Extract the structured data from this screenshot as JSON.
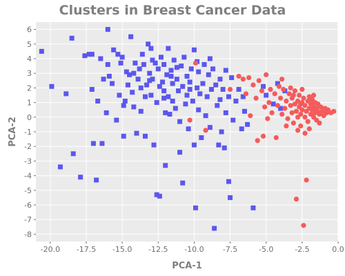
{
  "chart_data": {
    "type": "scatter",
    "title": "Clusters in Breast Cancer Data",
    "xlabel": "PCA-1",
    "ylabel": "PCA-2",
    "xlim": [
      -21,
      0
    ],
    "ylim": [
      -8.5,
      6.5
    ],
    "xticks": [
      -20.0,
      -17.5,
      -15.0,
      -12.5,
      -10.0,
      -7.5,
      -5.0,
      -2.5,
      0.0
    ],
    "xtick_labels": [
      "-20.0",
      "-17.5",
      "-15.0",
      "-12.5",
      "-10.0",
      "-7.5",
      "-5.0",
      "-2.5",
      "0.0"
    ],
    "yticks": [
      6,
      5,
      4,
      3,
      2,
      1,
      0,
      -1,
      -2,
      -3,
      -4,
      -5,
      -6,
      -7,
      -8
    ],
    "ytick_labels": [
      "6",
      "5",
      "4",
      "3",
      "2",
      "1",
      "0",
      "-1",
      "-2",
      "-3",
      "-4",
      "-5",
      "-6",
      "-7",
      "-8"
    ],
    "grid": true,
    "colors": {
      "background": "#ebebeb",
      "grid": "#ffffff",
      "text": "#7f7f7f",
      "series_a": "#5b57ee",
      "series_b": "#f55a5a"
    },
    "series": [
      {
        "marker": "square",
        "color": "#5b57ee",
        "points": [
          [
            -20.6,
            4.5
          ],
          [
            -19.9,
            2.1
          ],
          [
            -19.3,
            -3.4
          ],
          [
            -18.9,
            1.6
          ],
          [
            -18.5,
            5.4
          ],
          [
            -18.4,
            -2.5
          ],
          [
            -17.9,
            -4.1
          ],
          [
            -17.6,
            4.2
          ],
          [
            -17.3,
            4.3
          ],
          [
            -17.1,
            4.3
          ],
          [
            -17.1,
            1.9
          ],
          [
            -17.0,
            -1.8
          ],
          [
            -16.8,
            -4.3
          ],
          [
            -16.7,
            1.1
          ],
          [
            -16.4,
            -1.8
          ],
          [
            -16.3,
            2.6
          ],
          [
            -16.1,
            0.3
          ],
          [
            -16.0,
            6.0
          ],
          [
            -16.0,
            3.6
          ],
          [
            -15.9,
            2.8
          ],
          [
            -15.6,
            4.6
          ],
          [
            -15.4,
            -0.2
          ],
          [
            -15.3,
            4.3
          ],
          [
            -15.2,
            1.5
          ],
          [
            -15.1,
            3.7
          ],
          [
            -15.0,
            4.1
          ],
          [
            -14.9,
            0.8
          ],
          [
            -14.9,
            -1.3
          ],
          [
            -14.8,
            1.1
          ],
          [
            -14.7,
            3.1
          ],
          [
            -14.6,
            2.2
          ],
          [
            -14.5,
            2.9
          ],
          [
            -14.4,
            5.5
          ],
          [
            -14.3,
            1.7
          ],
          [
            -14.2,
            0.7
          ],
          [
            -14.1,
            3.7
          ],
          [
            -14.0,
            -1.1
          ],
          [
            -13.9,
            2.6
          ],
          [
            -13.8,
            3.3
          ],
          [
            -13.7,
            2.0
          ],
          [
            -13.6,
            4.3
          ],
          [
            -13.5,
            3.6
          ],
          [
            -13.4,
            -1.3
          ],
          [
            -13.4,
            1.4
          ],
          [
            -13.3,
            2.2
          ],
          [
            -13.2,
            5.0
          ],
          [
            -13.1,
            3.0
          ],
          [
            -13.0,
            1.5
          ],
          [
            -13.0,
            4.7
          ],
          [
            -12.9,
            2.6
          ],
          [
            -12.8,
            -1.9
          ],
          [
            -12.7,
            3.7
          ],
          [
            -12.6,
            1.0
          ],
          [
            -12.6,
            -5.3
          ],
          [
            -12.5,
            3.3
          ],
          [
            -12.4,
            2.1
          ],
          [
            -12.4,
            -5.4
          ],
          [
            -12.3,
            4.1
          ],
          [
            -12.2,
            2.4
          ],
          [
            -12.1,
            1.8
          ],
          [
            -12.1,
            3.6
          ],
          [
            -12.0,
            0.3
          ],
          [
            -12.0,
            -3.3
          ],
          [
            -11.9,
            2.9
          ],
          [
            -11.8,
            1.4
          ],
          [
            -11.8,
            4.7
          ],
          [
            -11.7,
            0.2
          ],
          [
            -11.6,
            3.2
          ],
          [
            -11.5,
            2.3
          ],
          [
            -11.5,
            1.1
          ],
          [
            -11.4,
            3.9
          ],
          [
            -11.3,
            0.6
          ],
          [
            -11.2,
            2.6
          ],
          [
            -11.1,
            1.8
          ],
          [
            -11.0,
            -0.3
          ],
          [
            -11.0,
            -2.4
          ],
          [
            -10.9,
            3.5
          ],
          [
            -10.8,
            2.1
          ],
          [
            -10.8,
            -4.5
          ],
          [
            -10.7,
            4.1
          ],
          [
            -10.6,
            0.9
          ],
          [
            -10.5,
            2.8
          ],
          [
            -10.5,
            1.5
          ],
          [
            -10.4,
            -0.8
          ],
          [
            -10.3,
            2.4
          ],
          [
            -10.2,
            3.3
          ],
          [
            -10.1,
            1.1
          ],
          [
            -10.0,
            -1.9
          ],
          [
            -10.0,
            4.6
          ],
          [
            -9.9,
            -6.2
          ],
          [
            -9.8,
            2.0
          ],
          [
            -9.7,
            3.1
          ],
          [
            -9.7,
            0.5
          ],
          [
            -9.6,
            1.6
          ],
          [
            -9.5,
            -1.4
          ],
          [
            -9.4,
            2.3
          ],
          [
            -9.3,
            3.6
          ],
          [
            -9.2,
            0.1
          ],
          [
            -9.1,
            1.4
          ],
          [
            -9.0,
            2.9
          ],
          [
            -8.9,
            -0.7
          ],
          [
            -8.9,
            4.0
          ],
          [
            -8.8,
            1.9
          ],
          [
            -8.7,
            3.3
          ],
          [
            -8.6,
            -7.6
          ],
          [
            -8.5,
            2.2
          ],
          [
            -8.4,
            0.8
          ],
          [
            -8.3,
            -1.9
          ],
          [
            -8.2,
            2.6
          ],
          [
            -8.1,
            -1.0
          ],
          [
            -8.0,
            1.9
          ],
          [
            -7.9,
            -2.1
          ],
          [
            -7.8,
            3.2
          ],
          [
            -7.8,
            0.3
          ],
          [
            -7.6,
            -4.4
          ],
          [
            -7.6,
            1.4
          ],
          [
            -7.5,
            -5.5
          ],
          [
            -7.4,
            2.7
          ],
          [
            -7.3,
            -0.2
          ],
          [
            -7.1,
            1.1
          ],
          [
            -6.9,
            1.9
          ],
          [
            -6.7,
            -0.8
          ],
          [
            -6.6,
            1.4
          ],
          [
            -6.5,
            0.4
          ],
          [
            -6.3,
            -0.5
          ],
          [
            -5.9,
            -6.2
          ],
          [
            -5.2,
            2.1
          ],
          [
            -5.0,
            1.5
          ],
          [
            -4.5,
            0.9
          ],
          [
            -4.2,
            2.3
          ],
          [
            -4.0,
            0.6
          ],
          [
            -3.7,
            1.8
          ],
          [
            -16.5,
            4.0
          ],
          [
            -14.2,
            3.0
          ],
          [
            -12.9,
            3.9
          ],
          [
            -11.6,
            2.8
          ],
          [
            -10.3,
            1.9
          ],
          [
            -13.7,
            0.4
          ],
          [
            -9.8,
            3.8
          ],
          [
            -11.2,
            3.4
          ],
          [
            -8.2,
            1.2
          ],
          [
            -12.1,
            1.3
          ],
          [
            -15.7,
            2.3
          ],
          [
            -13.1,
            2.5
          ]
        ]
      },
      {
        "marker": "circle",
        "color": "#f55a5a",
        "points": [
          [
            -9.9,
            3.7
          ],
          [
            -10.3,
            -0.2
          ],
          [
            -9.2,
            -0.9
          ],
          [
            -7.5,
            1.9
          ],
          [
            -6.9,
            2.8
          ],
          [
            -6.6,
            2.6
          ],
          [
            -6.2,
            2.7
          ],
          [
            -5.9,
            2.2
          ],
          [
            -5.7,
            1.3
          ],
          [
            -5.5,
            2.5
          ],
          [
            -5.3,
            1.8
          ],
          [
            -5.1,
            0.7
          ],
          [
            -4.9,
            -0.1
          ],
          [
            -4.8,
            1.0
          ],
          [
            -4.6,
            0.3
          ],
          [
            -4.4,
            1.6
          ],
          [
            -4.3,
            -1.4
          ],
          [
            -4.2,
            0.8
          ],
          [
            -4.0,
            1.3
          ],
          [
            -3.9,
            0.2
          ],
          [
            -3.8,
            1.9
          ],
          [
            -3.7,
            0.6
          ],
          [
            -3.6,
            1.1
          ],
          [
            -3.5,
            -0.1
          ],
          [
            -3.4,
            1.6
          ],
          [
            -3.3,
            0.8
          ],
          [
            -3.2,
            0.3
          ],
          [
            -3.2,
            1.3
          ],
          [
            -3.1,
            -0.4
          ],
          [
            -3.0,
            0.9
          ],
          [
            -3.0,
            1.8
          ],
          [
            -2.9,
            0.4
          ],
          [
            -2.9,
            -5.6
          ],
          [
            -2.8,
            1.1
          ],
          [
            -2.8,
            0.0
          ],
          [
            -2.7,
            0.7
          ],
          [
            -2.7,
            1.5
          ],
          [
            -2.6,
            0.2
          ],
          [
            -2.6,
            -0.6
          ],
          [
            -2.5,
            1.0
          ],
          [
            -2.5,
            0.5
          ],
          [
            -2.4,
            1.3
          ],
          [
            -2.4,
            -7.4
          ],
          [
            -2.3,
            0.0
          ],
          [
            -2.3,
            0.8
          ],
          [
            -2.2,
            -4.3
          ],
          [
            -2.2,
            0.4
          ],
          [
            -2.1,
            1.1
          ],
          [
            -2.1,
            -0.3
          ],
          [
            -2.0,
            0.6
          ],
          [
            -2.0,
            1.4
          ],
          [
            -1.9,
            0.2
          ],
          [
            -1.9,
            0.9
          ],
          [
            -1.8,
            0.5
          ],
          [
            -1.8,
            1.2
          ],
          [
            -1.7,
            0.0
          ],
          [
            -1.7,
            0.7
          ],
          [
            -1.6,
            0.3
          ],
          [
            -1.6,
            1.0
          ],
          [
            -1.5,
            0.6
          ],
          [
            -1.5,
            -0.2
          ],
          [
            -1.4,
            0.4
          ],
          [
            -1.4,
            0.9
          ],
          [
            -1.3,
            0.2
          ],
          [
            -1.2,
            0.7
          ],
          [
            -1.1,
            0.4
          ],
          [
            -1.0,
            0.1
          ],
          [
            -0.9,
            0.6
          ],
          [
            -0.8,
            0.3
          ],
          [
            -0.7,
            0.5
          ],
          [
            -0.5,
            0.3
          ],
          [
            -0.3,
            0.4
          ],
          [
            -6.1,
            0.1
          ],
          [
            -5.6,
            -1.6
          ],
          [
            -5.2,
            -1.3
          ],
          [
            -4.1,
            2.1
          ],
          [
            -3.6,
            -0.6
          ],
          [
            -3.3,
            2.0
          ],
          [
            -2.8,
            -0.9
          ],
          [
            -2.5,
            1.9
          ],
          [
            -2.3,
            -1.1
          ],
          [
            -2.0,
            -0.8
          ],
          [
            -1.7,
            1.5
          ],
          [
            -1.3,
            -0.4
          ],
          [
            -4.7,
            1.9
          ],
          [
            -3.9,
            2.6
          ],
          [
            -6.4,
            1.6
          ],
          [
            -5.0,
            2.9
          ],
          [
            -3.1,
            1.5
          ],
          [
            -2.6,
            0.9
          ]
        ]
      }
    ]
  }
}
